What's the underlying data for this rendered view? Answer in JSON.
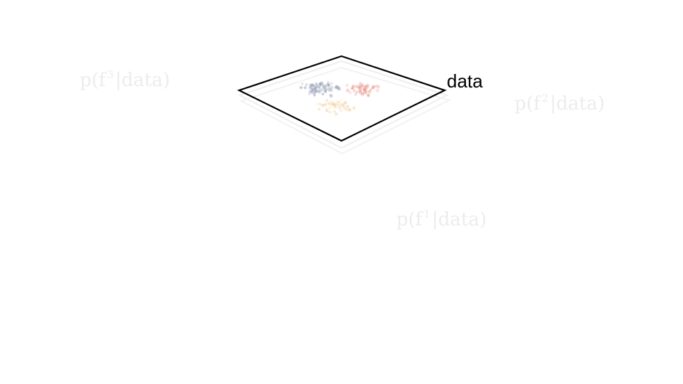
{
  "labels": {
    "data": "data",
    "posterior_f3": {
      "prefix": "p(f",
      "sup": "3",
      "suffix": "|data)"
    },
    "posterior_f2": {
      "prefix": "p(f",
      "sup": "2",
      "suffix": "|data)"
    },
    "posterior_f1": {
      "prefix": "p(f",
      "sup": "1",
      "suffix": "|data)"
    }
  },
  "colors": {
    "plane_outline": "#000000",
    "faded_plane": "#eeeeee",
    "cluster_blue": "#8e96ae",
    "cluster_red": "#e8968c",
    "cluster_orange": "#f0c88c",
    "faded_text": "#ececec"
  }
}
